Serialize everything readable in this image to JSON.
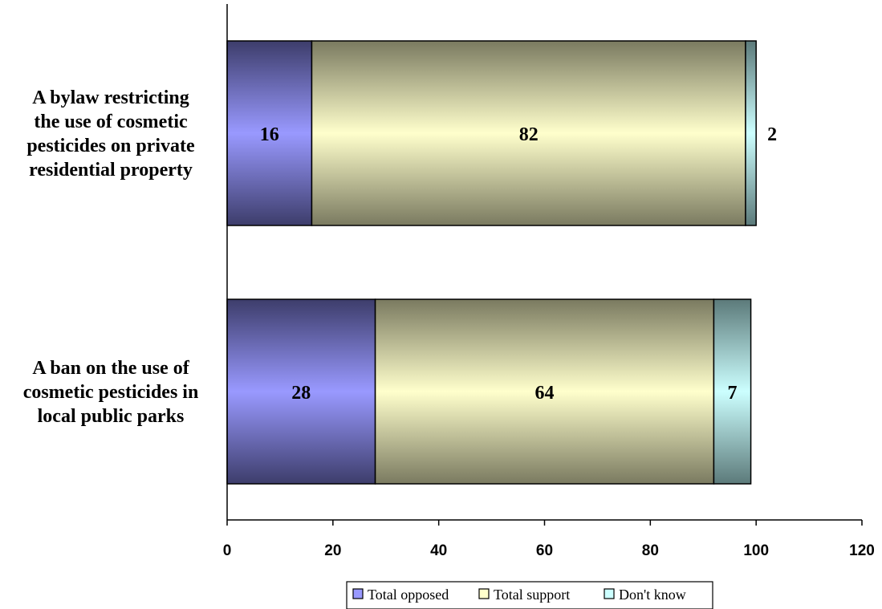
{
  "chart_data": {
    "type": "bar",
    "orientation": "horizontal",
    "stacked": true,
    "categories": [
      [
        "A bylaw restricting",
        "the use of cosmetic",
        "pesticides on private",
        "residential property"
      ],
      [
        "A ban on the use of",
        "cosmetic pesticides in",
        "local public parks"
      ]
    ],
    "series": [
      {
        "name": "Total opposed",
        "values": [
          16,
          28
        ],
        "color": "#9999ff"
      },
      {
        "name": "Total support",
        "values": [
          82,
          64
        ],
        "color": "#ffffcc"
      },
      {
        "name": "Don't know",
        "values": [
          2,
          7
        ],
        "color": "#ccffff"
      }
    ],
    "data_labels": [
      [
        "16",
        "82",
        "2"
      ],
      [
        "28",
        "64",
        "7"
      ]
    ],
    "xlim": [
      0,
      120
    ],
    "x_ticks": [
      0,
      20,
      40,
      60,
      80,
      100,
      120
    ],
    "grid": false,
    "legend_position": "bottom",
    "title": "",
    "xlabel": "",
    "ylabel": ""
  }
}
